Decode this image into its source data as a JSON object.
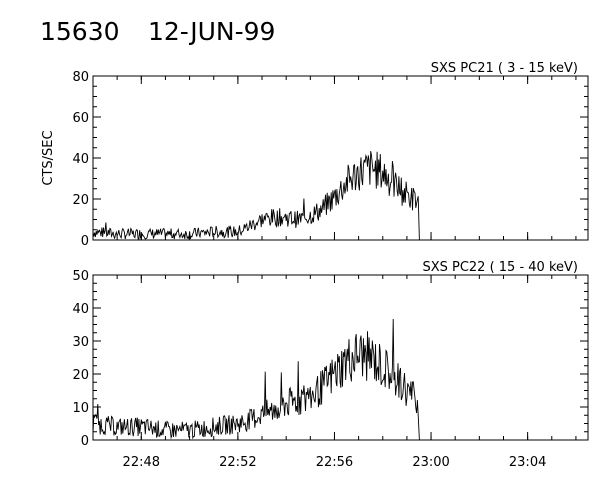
{
  "header": {
    "event_id": "15630",
    "date": "12-JUN-99"
  },
  "chart_data": [
    {
      "type": "line",
      "title": "SXS PC21  (  3 - 15 keV)",
      "xlabel": "",
      "ylabel": "CTS/SEC",
      "ylim": [
        0,
        80
      ],
      "yticks": [
        "0",
        "20",
        "40",
        "60",
        "80"
      ],
      "xlim": [
        "22:46:00",
        "23:06:30"
      ],
      "xticks": [
        "22:48",
        "22:52",
        "22:56",
        "23:00",
        "23:04"
      ],
      "series": [
        {
          "x": [
            "22:46:00",
            "22:47:00",
            "22:48:00",
            "22:49:00",
            "22:50:00",
            "22:51:00",
            "22:52:00",
            "22:52:30",
            "22:53:00",
            "22:53:30",
            "22:54:00",
            "22:54:30",
            "22:55:00",
            "22:55:30",
            "22:56:00",
            "22:56:30",
            "22:57:00",
            "22:57:30",
            "22:58:00",
            "22:58:30",
            "22:59:00",
            "22:59:30",
            "22:59:31",
            "23:00:00",
            "23:02:00",
            "23:04:00",
            "23:06:30"
          ],
          "y": [
            4,
            3,
            3,
            3,
            3,
            4,
            4,
            7,
            10,
            11,
            11,
            10,
            12,
            15,
            21,
            28,
            33,
            35,
            33,
            27,
            22,
            18,
            0,
            0,
            0,
            0,
            0
          ]
        }
      ]
    },
    {
      "type": "line",
      "title": "SXS PC22  ( 15 - 40 keV)",
      "xlabel": "",
      "ylabel": "",
      "ylim": [
        0,
        50
      ],
      "yticks": [
        "0",
        "10",
        "20",
        "30",
        "40",
        "50"
      ],
      "xlim": [
        "22:46:00",
        "23:06:30"
      ],
      "xticks": [
        "22:48",
        "22:52",
        "22:56",
        "23:00",
        "23:04"
      ],
      "series": [
        {
          "x": [
            "22:46:00",
            "22:47:00",
            "22:48:00",
            "22:49:00",
            "22:50:00",
            "22:51:00",
            "22:52:00",
            "22:52:30",
            "22:53:00",
            "22:53:30",
            "22:54:00",
            "22:54:30",
            "22:55:00",
            "22:55:30",
            "22:56:00",
            "22:56:30",
            "22:57:00",
            "22:57:30",
            "22:58:00",
            "22:58:30",
            "22:59:00",
            "22:59:30",
            "22:59:31",
            "23:00:00",
            "23:02:00",
            "23:04:00",
            "23:06:30"
          ],
          "y": [
            5,
            4,
            4,
            3,
            3,
            4,
            5,
            6,
            8,
            9,
            11,
            12,
            13,
            16,
            20,
            24,
            26,
            25,
            22,
            19,
            15,
            12,
            0,
            0,
            0,
            0,
            0
          ]
        }
      ]
    }
  ]
}
